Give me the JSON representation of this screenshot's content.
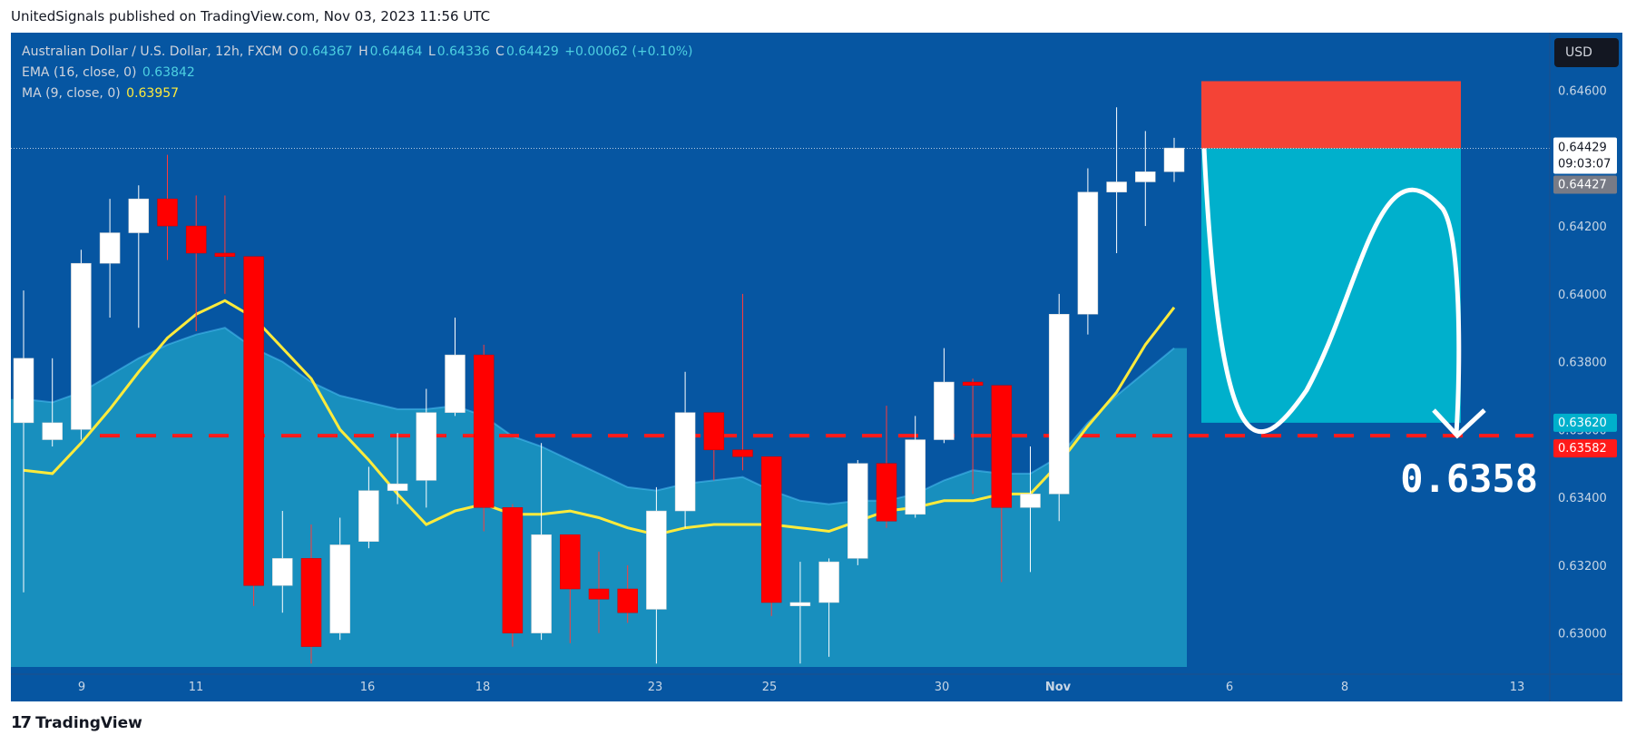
{
  "header": {
    "published": "UnitedSignals published on TradingView.com, Nov 03, 2023 11:56 UTC"
  },
  "legend": {
    "symbol": "Australian Dollar / U.S. Dollar, 12h, FXCM",
    "o_label": "O",
    "o": "0.64367",
    "h_label": "H",
    "h": "0.64464",
    "l_label": "L",
    "l": "0.64336",
    "c_label": "C",
    "c": "0.64429",
    "change": "+0.00062 (+0.10%)",
    "ema_label": "EMA (16, close, 0)",
    "ema_value": "0.63842",
    "ma_label": "MA (9, close, 0)",
    "ma_value": "0.63957"
  },
  "currency_button": "USD",
  "price_labels": {
    "last": "0.64429",
    "countdown": "09:03:07",
    "bid": "0.64427",
    "target_zone": "0.63620",
    "level": "0.63582"
  },
  "annotation": {
    "target_text": "0.6358"
  },
  "footer": {
    "brand": "TradingView",
    "logo": "tradingview-logo"
  },
  "colors": {
    "background": "#0656a2",
    "up": "#ffffff",
    "down": "#ff0000",
    "ema_fill": "#1fa3c7",
    "ma_line": "#ffeb3b",
    "stop_zone": "#f44336",
    "target_zone": "#00b0cc",
    "level_line": "#ff1a1a"
  },
  "chart_data": {
    "type": "candlestick",
    "title": "Australian Dollar / U.S. Dollar, 12h, FXCM",
    "ylim": [
      0.629,
      0.6477
    ],
    "y_ticks": [
      "0.63000",
      "0.63200",
      "0.63400",
      "0.63600",
      "0.63800",
      "0.64000",
      "0.64200",
      "0.64400",
      "0.64600"
    ],
    "x_ticks": [
      "9",
      "11",
      "16",
      "18",
      "23",
      "25",
      "30",
      "Nov",
      "6",
      "8",
      "13"
    ],
    "candles": [
      {
        "o": 0.6362,
        "h": 0.6401,
        "l": 0.6312,
        "c": 0.6381
      },
      {
        "o": 0.6357,
        "h": 0.6381,
        "l": 0.6355,
        "c": 0.6362
      },
      {
        "o": 0.636,
        "h": 0.6413,
        "l": 0.6357,
        "c": 0.6409
      },
      {
        "o": 0.6409,
        "h": 0.6428,
        "l": 0.6393,
        "c": 0.6418
      },
      {
        "o": 0.6418,
        "h": 0.6432,
        "l": 0.639,
        "c": 0.6428
      },
      {
        "o": 0.6428,
        "h": 0.6441,
        "l": 0.641,
        "c": 0.642
      },
      {
        "o": 0.642,
        "h": 0.6429,
        "l": 0.6389,
        "c": 0.6412
      },
      {
        "o": 0.6412,
        "h": 0.6429,
        "l": 0.64,
        "c": 0.6411
      },
      {
        "o": 0.6411,
        "h": 0.6411,
        "l": 0.6308,
        "c": 0.6314
      },
      {
        "o": 0.6314,
        "h": 0.6336,
        "l": 0.6306,
        "c": 0.6322
      },
      {
        "o": 0.6322,
        "h": 0.6332,
        "l": 0.6291,
        "c": 0.6296
      },
      {
        "o": 0.63,
        "h": 0.6334,
        "l": 0.6298,
        "c": 0.6326
      },
      {
        "o": 0.6327,
        "h": 0.6349,
        "l": 0.6325,
        "c": 0.6342
      },
      {
        "o": 0.6342,
        "h": 0.6359,
        "l": 0.6338,
        "c": 0.6344
      },
      {
        "o": 0.6345,
        "h": 0.6372,
        "l": 0.6337,
        "c": 0.6365
      },
      {
        "o": 0.6365,
        "h": 0.6393,
        "l": 0.6364,
        "c": 0.6382
      },
      {
        "o": 0.6382,
        "h": 0.6385,
        "l": 0.633,
        "c": 0.6337
      },
      {
        "o": 0.6337,
        "h": 0.6338,
        "l": 0.6296,
        "c": 0.63
      },
      {
        "o": 0.63,
        "h": 0.6356,
        "l": 0.6298,
        "c": 0.6329
      },
      {
        "o": 0.6329,
        "h": 0.6329,
        "l": 0.6297,
        "c": 0.6313
      },
      {
        "o": 0.6313,
        "h": 0.6324,
        "l": 0.63,
        "c": 0.631
      },
      {
        "o": 0.6313,
        "h": 0.632,
        "l": 0.6303,
        "c": 0.6306
      },
      {
        "o": 0.6307,
        "h": 0.6343,
        "l": 0.6291,
        "c": 0.6336
      },
      {
        "o": 0.6336,
        "h": 0.6377,
        "l": 0.6331,
        "c": 0.6365
      },
      {
        "o": 0.6365,
        "h": 0.6365,
        "l": 0.6345,
        "c": 0.6354
      },
      {
        "o": 0.6354,
        "h": 0.64,
        "l": 0.6348,
        "c": 0.6352
      },
      {
        "o": 0.6352,
        "h": 0.6352,
        "l": 0.6305,
        "c": 0.6309
      },
      {
        "o": 0.6308,
        "h": 0.6321,
        "l": 0.6291,
        "c": 0.6309
      },
      {
        "o": 0.6309,
        "h": 0.6322,
        "l": 0.6293,
        "c": 0.6321
      },
      {
        "o": 0.6322,
        "h": 0.6351,
        "l": 0.632,
        "c": 0.635
      },
      {
        "o": 0.635,
        "h": 0.6367,
        "l": 0.6331,
        "c": 0.6333
      },
      {
        "o": 0.6335,
        "h": 0.6364,
        "l": 0.6334,
        "c": 0.6357
      },
      {
        "o": 0.6357,
        "h": 0.6384,
        "l": 0.6356,
        "c": 0.6374
      },
      {
        "o": 0.6374,
        "h": 0.6375,
        "l": 0.6341,
        "c": 0.6373
      },
      {
        "o": 0.6373,
        "h": 0.6373,
        "l": 0.6315,
        "c": 0.6337
      },
      {
        "o": 0.6337,
        "h": 0.6355,
        "l": 0.6318,
        "c": 0.6341
      },
      {
        "o": 0.6341,
        "h": 0.64,
        "l": 0.6333,
        "c": 0.6394
      },
      {
        "o": 0.6394,
        "h": 0.6437,
        "l": 0.6388,
        "c": 0.643
      },
      {
        "o": 0.643,
        "h": 0.6455,
        "l": 0.6412,
        "c": 0.6433
      },
      {
        "o": 0.6433,
        "h": 0.6448,
        "l": 0.642,
        "c": 0.6436
      },
      {
        "o": 0.6436,
        "h": 0.6446,
        "l": 0.6433,
        "c": 0.6443
      }
    ],
    "ema16": [
      0.6369,
      0.6368,
      0.6371,
      0.6376,
      0.6381,
      0.6385,
      0.6388,
      0.639,
      0.6384,
      0.638,
      0.6374,
      0.637,
      0.6368,
      0.6366,
      0.6366,
      0.6367,
      0.6364,
      0.6358,
      0.6355,
      0.6351,
      0.6347,
      0.6343,
      0.6342,
      0.6344,
      0.6345,
      0.6346,
      0.6342,
      0.6339,
      0.6338,
      0.6339,
      0.6339,
      0.6341,
      0.6345,
      0.6348,
      0.6347,
      0.6347,
      0.6352,
      0.6362,
      0.637,
      0.6377,
      0.6384
    ],
    "ma9": [
      0.6348,
      0.6347,
      0.6356,
      0.6366,
      0.6377,
      0.6387,
      0.6394,
      0.6398,
      0.6393,
      0.6384,
      0.6375,
      0.636,
      0.6351,
      0.6341,
      0.6332,
      0.6336,
      0.6338,
      0.6335,
      0.6335,
      0.6336,
      0.6334,
      0.6331,
      0.6329,
      0.6331,
      0.6332,
      0.6332,
      0.6332,
      0.6331,
      0.633,
      0.6333,
      0.6336,
      0.6337,
      0.6339,
      0.6339,
      0.6341,
      0.6341,
      0.635,
      0.6361,
      0.6371,
      0.6385,
      0.6396
    ],
    "position": {
      "entry": 0.64429,
      "stop": 0.64627,
      "target": 0.6362,
      "level": 0.63582
    }
  }
}
